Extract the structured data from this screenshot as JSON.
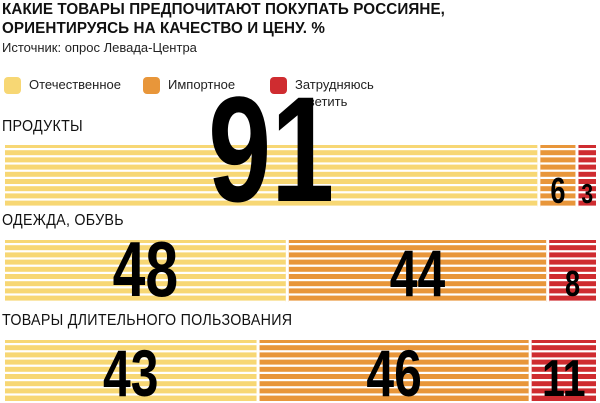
{
  "title_line1": "КАКИЕ ТОВАРЫ ПРЕДПОЧИТАЮТ ПОКУПАТЬ РОССИЯНЕ,",
  "title_line2": "ОРИЕНТИРУЯСЬ НА КАЧЕСТВО И ЦЕНУ. %",
  "source": "Источник: опрос Левада-Центра",
  "colors": {
    "domestic": "#f7d774",
    "imported": "#e8963a",
    "unsure": "#cf2c30",
    "stripe": "#ffffff"
  },
  "chart_data": {
    "type": "bar",
    "stacked": true,
    "orientation": "horizontal",
    "unit": "%",
    "series": [
      {
        "name": "Отечественное",
        "color": "#f7d774"
      },
      {
        "name": "Импортное",
        "color": "#e8963a"
      },
      {
        "name": "Затрудняюсь ответить",
        "color": "#cf2c30"
      }
    ],
    "rows": [
      {
        "category": "ПРОДУКТЫ",
        "values": [
          91,
          6,
          3
        ],
        "labels": [
          "91",
          "6",
          "3"
        ]
      },
      {
        "category": "ОДЕЖДА, ОБУВЬ",
        "values": [
          48,
          44,
          8
        ],
        "labels": [
          "48",
          "44",
          "8"
        ]
      },
      {
        "category": "ТОВАРЫ ДЛИТЕЛЬНОГО ПОЛЬЗОВАНИЯ",
        "values": [
          43,
          46,
          11
        ],
        "labels": [
          "43",
          "46",
          "11"
        ]
      }
    ]
  }
}
